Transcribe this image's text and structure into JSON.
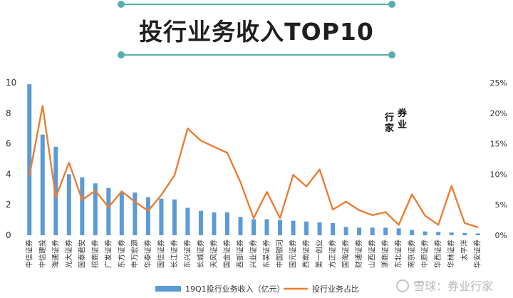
{
  "header": {
    "title": "投行业务收入TOP10"
  },
  "stamp": {
    "chars": [
      "行",
      "家",
      "券",
      "业"
    ]
  },
  "watermark": {
    "text": "雪球：券业行家"
  },
  "chart_data": {
    "type": "bar",
    "combo": "bar-line-dual-axis",
    "title": "投行业务收入TOP10",
    "categories": [
      "中信证券",
      "中信建投",
      "海通证券",
      "光大证券",
      "国泰君安",
      "招商证券",
      "广发证券",
      "东方证券",
      "申万宏源",
      "华泰证券",
      "国信证券",
      "长江证券",
      "东兴证券",
      "长城证券",
      "天风证券",
      "国金证券",
      "西部证券",
      "兴业证券",
      "东吴证券",
      "中国银河",
      "国元证券",
      "西南证券",
      "第一创业",
      "方正证券",
      "国海证券",
      "财通证券",
      "山西证券",
      "浙商证券",
      "东北证券",
      "南京证券",
      "中原证券",
      "华西证券",
      "华林证券",
      "太平洋",
      "华安证券"
    ],
    "series": [
      {
        "name": "19Q1投行业务收入（亿元）",
        "type": "bar",
        "axis": "left",
        "color": "#5b9bd5",
        "values": [
          9.9,
          6.6,
          5.8,
          4.0,
          3.8,
          3.4,
          3.1,
          2.8,
          2.8,
          2.5,
          2.4,
          2.35,
          1.8,
          1.6,
          1.5,
          1.5,
          1.2,
          1.05,
          1.05,
          1.0,
          0.95,
          0.9,
          0.85,
          0.8,
          0.55,
          0.5,
          0.5,
          0.5,
          0.45,
          0.35,
          0.25,
          0.22,
          0.18,
          0.15,
          0.12
        ]
      },
      {
        "name": "投行业务占比",
        "type": "line",
        "axis": "right",
        "color": "#ed7d31",
        "values": [
          0.098,
          0.212,
          0.062,
          0.119,
          0.058,
          0.073,
          0.046,
          0.072,
          0.055,
          0.04,
          0.066,
          0.098,
          0.175,
          0.155,
          0.145,
          0.135,
          0.087,
          0.028,
          0.071,
          0.028,
          0.099,
          0.08,
          0.108,
          0.042,
          0.055,
          0.041,
          0.033,
          0.038,
          0.017,
          0.067,
          0.032,
          0.017,
          0.081,
          0.02,
          0.013
        ]
      }
    ],
    "y_left": {
      "ticks": [
        0,
        2,
        4,
        6,
        8,
        10
      ],
      "range": [
        0,
        10
      ]
    },
    "y_right": {
      "ticks": [
        "0%",
        "5%",
        "10%",
        "15%",
        "20%",
        "25%"
      ],
      "range": [
        0,
        0.25
      ]
    },
    "grid": false,
    "legend": "bottom",
    "legend_entries": [
      "19Q1投行业务收入（亿元）",
      "投行业务占比"
    ]
  }
}
